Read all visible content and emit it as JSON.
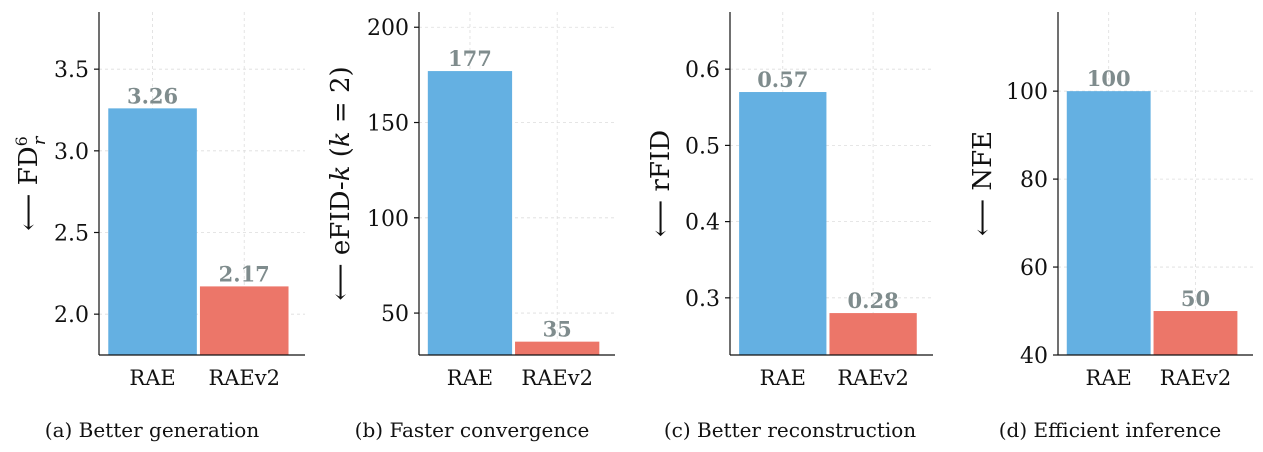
{
  "colors": {
    "rae": "#64b0e2",
    "raev2": "#ec7669",
    "value_label": "#7f8c8d"
  },
  "chart_data": [
    {
      "type": "bar",
      "categories": [
        "RAE",
        "RAEv2"
      ],
      "values": [
        3.26,
        2.17
      ],
      "value_labels": [
        "3.26",
        "2.17"
      ],
      "ylabel_arrow": "⟵",
      "ylabel_main": "FD",
      "ylabel_sup": "6",
      "ylabel_sub": "r",
      "ylim": [
        1.75,
        3.85
      ],
      "yticks": [
        2.0,
        2.5,
        3.0,
        3.5
      ],
      "ytick_labels": [
        "2.0",
        "2.5",
        "3.0",
        "3.5"
      ],
      "caption": "(a) Better generation",
      "grid": true
    },
    {
      "type": "bar",
      "categories": [
        "RAE",
        "RAEv2"
      ],
      "values": [
        177,
        35
      ],
      "value_labels": [
        "177",
        "35"
      ],
      "ylabel_arrow": "⟵",
      "ylabel_main": "eFID-",
      "ylabel_k": "k",
      "ylabel_paren": " (",
      "ylabel_k2": "k",
      "ylabel_eq": " = 2)",
      "ylim": [
        28,
        208
      ],
      "yticks": [
        50,
        100,
        150,
        200
      ],
      "ytick_labels": [
        "50",
        "100",
        "150",
        "200"
      ],
      "caption": "(b) Faster convergence",
      "grid": true
    },
    {
      "type": "bar",
      "categories": [
        "RAE",
        "RAEv2"
      ],
      "values": [
        0.57,
        0.28
      ],
      "value_labels": [
        "0.57",
        "0.28"
      ],
      "ylabel_arrow": "⟵",
      "ylabel_main": "rFID",
      "ylim": [
        0.225,
        0.675
      ],
      "yticks": [
        0.3,
        0.4,
        0.5,
        0.6
      ],
      "ytick_labels": [
        "0.3",
        "0.4",
        "0.5",
        "0.6"
      ],
      "caption": "(c) Better reconstruction",
      "grid": true
    },
    {
      "type": "bar",
      "categories": [
        "RAE",
        "RAEv2"
      ],
      "values": [
        100,
        50
      ],
      "value_labels": [
        "100",
        "50"
      ],
      "ylabel_arrow": "⟵",
      "ylabel_main": "NFE",
      "ylim": [
        40,
        118
      ],
      "yticks": [
        40,
        60,
        80,
        100
      ],
      "ytick_labels": [
        "40",
        "60",
        "80",
        "100"
      ],
      "caption": "(d) Efficient inference",
      "grid": true
    }
  ]
}
